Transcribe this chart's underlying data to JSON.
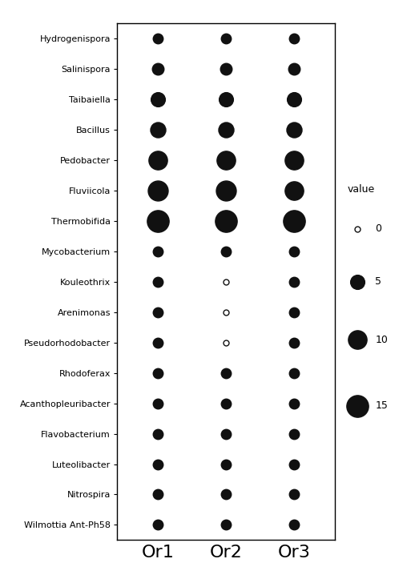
{
  "organisms": [
    "Hydrogenispora",
    "Salinispora",
    "Taibaiella",
    "Bacillus",
    "Pedobacter",
    "Fluviicola",
    "Thermobifida",
    "Mycobacterium",
    "Kouleothrix",
    "Arenimonas",
    "Pseudorhodobacter",
    "Rhodoferax",
    "Acanthopleuribacter",
    "Flavobacterium",
    "Luteolibacter",
    "Nitrospira",
    "Wilmottia Ant-Ph58"
  ],
  "columns": [
    "Or1",
    "Or2",
    "Or3"
  ],
  "values": {
    "Hydrogenispora": [
      2,
      2,
      2
    ],
    "Salinispora": [
      3,
      3,
      3
    ],
    "Taibaiella": [
      5,
      5,
      5
    ],
    "Bacillus": [
      6,
      6,
      6
    ],
    "Pedobacter": [
      10,
      10,
      10
    ],
    "Fluviicola": [
      12,
      12,
      10
    ],
    "Thermobifida": [
      15,
      15,
      15
    ],
    "Mycobacterium": [
      2,
      2,
      2
    ],
    "Kouleothrix": [
      2,
      0,
      2
    ],
    "Arenimonas": [
      2,
      0,
      2
    ],
    "Pseudorhodobacter": [
      2,
      0,
      2
    ],
    "Rhodoferax": [
      2,
      2,
      2
    ],
    "Acanthopleuribacter": [
      2,
      2,
      2
    ],
    "Flavobacterium": [
      2,
      2,
      2
    ],
    "Luteolibacter": [
      2,
      2,
      2
    ],
    "Nitrospira": [
      2,
      2,
      2
    ],
    "Wilmottia Ant-Ph58": [
      2,
      2,
      2
    ]
  },
  "dot_color": "#111111",
  "background_color": "#ffffff",
  "legend_values": [
    0,
    5,
    10,
    15
  ],
  "figure_width": 5.23,
  "figure_height": 7.33,
  "dpi": 100,
  "border_color": "#000000",
  "xlabel_fontsize": 16,
  "ylabel_fontsize": 8,
  "legend_fontsize": 9,
  "legend_title_fontsize": 9
}
